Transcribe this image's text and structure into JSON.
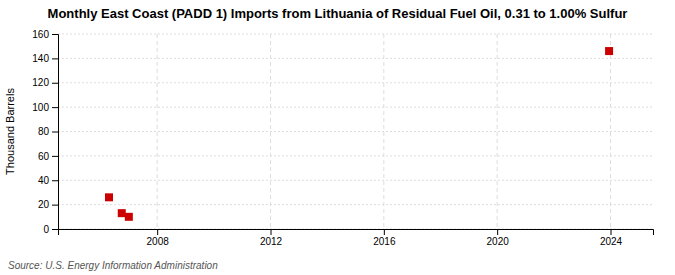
{
  "chart_data": {
    "type": "scatter",
    "title": "Monthly East Coast (PADD 1) Imports from Lithuania of Residual Fuel Oil, 0.31 to 1.00% Sulfur",
    "ylabel": "Thousand Barrels",
    "source": "Source: U.S. Energy Information Administration",
    "x": [
      2006.3,
      2006.75,
      2007.0,
      2023.95
    ],
    "values": [
      26,
      13,
      10,
      146
    ],
    "color": "#cc0000",
    "marker": "square",
    "xlim": [
      2004.5,
      2025.5
    ],
    "ylim": [
      0,
      160
    ],
    "xticks": [
      2008,
      2012,
      2016,
      2020,
      2024
    ],
    "yticks": [
      0,
      20,
      40,
      60,
      80,
      100,
      120,
      140,
      160
    ],
    "grid": true
  }
}
